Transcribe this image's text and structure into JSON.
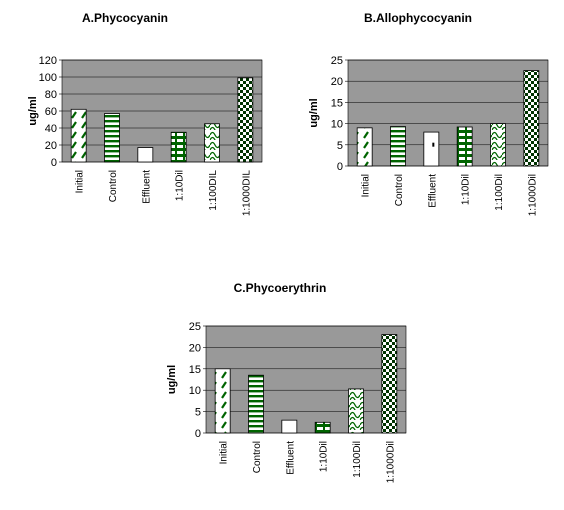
{
  "chart_data": [
    {
      "type": "bar",
      "title": "A.Phycocyanin",
      "ylabel": "ug/ml",
      "categories": [
        "Initial",
        "Control",
        "Effluent",
        "1:10Dil",
        "1:100DIL",
        "1:1000DIL"
      ],
      "values": [
        62,
        57,
        17,
        35,
        45,
        99
      ],
      "ylim": [
        0,
        120
      ],
      "yticks": [
        0,
        20,
        40,
        60,
        80,
        100,
        120
      ],
      "plot_background": "#999999",
      "grid": true,
      "legend": "none"
    },
    {
      "type": "bar",
      "title": "B.Allophycocyanin",
      "ylabel": "ug/ml",
      "categories": [
        "Initial",
        "Control",
        "Effluent",
        "1:10Dil",
        "1:100Dil",
        "1:1000Dil"
      ],
      "values": [
        9,
        9.3,
        8,
        9.2,
        10,
        22.5
      ],
      "ylim": [
        0,
        25
      ],
      "yticks": [
        0,
        5,
        10,
        15,
        20,
        25
      ],
      "plot_background": "#999999",
      "grid": true,
      "legend": "none"
    },
    {
      "type": "bar",
      "title": "C.Phycoerythrin",
      "ylabel": "ug/ml",
      "categories": [
        "Initial",
        "Control",
        "Effluent",
        "1:10Dil",
        "1:100Dil",
        "1:1000Dil"
      ],
      "values": [
        15,
        13.5,
        3,
        2.5,
        10.3,
        23
      ],
      "ylim": [
        0,
        25
      ],
      "yticks": [
        0,
        5,
        10,
        15,
        20,
        25
      ],
      "plot_background": "#999999",
      "grid": true,
      "legend": "none"
    }
  ],
  "bar_patterns": [
    "pat-initial",
    "pat-control",
    "pat-effluent",
    "pat-10dil",
    "pat-100dil",
    "pat-1000dil"
  ],
  "bar_color": "#006400"
}
